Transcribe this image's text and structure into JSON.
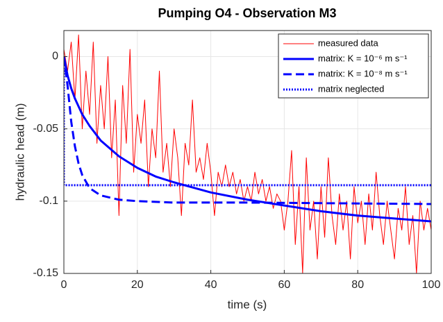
{
  "chart_data": {
    "type": "line",
    "title": "Pumping O4 - Observation M3",
    "xlabel": "time (s)",
    "ylabel": "hydraulic head (m)",
    "xlim": [
      0,
      100
    ],
    "ylim": [
      -0.15,
      0.018
    ],
    "xticks": [
      0,
      20,
      40,
      60,
      80,
      100
    ],
    "yticks": [
      0,
      -0.05,
      -0.1,
      -0.15
    ],
    "grid": true,
    "legend_location": "northeast",
    "series": [
      {
        "name": "measured data",
        "color": "#ff0000",
        "line_style": "-",
        "x": [
          0,
          1,
          2,
          3,
          4,
          5,
          6,
          7,
          8,
          9,
          10,
          11,
          12,
          13,
          14,
          15,
          16,
          17,
          18,
          19,
          20,
          21,
          22,
          23,
          24,
          25,
          26,
          27,
          28,
          29,
          30,
          31,
          32,
          33,
          34,
          35,
          36,
          37,
          38,
          39,
          40,
          41,
          42,
          43,
          44,
          45,
          46,
          47,
          48,
          49,
          50,
          51,
          52,
          53,
          54,
          55,
          56,
          57,
          58,
          59,
          60,
          61,
          62,
          63,
          64,
          65,
          66,
          67,
          68,
          69,
          70,
          71,
          72,
          73,
          74,
          75,
          76,
          77,
          78,
          79,
          80,
          81,
          82,
          83,
          84,
          85,
          86,
          87,
          88,
          89,
          90,
          91,
          92,
          93,
          94,
          95,
          96,
          97,
          98,
          99,
          100
        ],
        "values": [
          0.005,
          -0.01,
          0.01,
          -0.03,
          0.015,
          -0.05,
          -0.01,
          -0.04,
          0.01,
          -0.06,
          -0.02,
          -0.05,
          0.0,
          -0.07,
          -0.03,
          -0.11,
          -0.02,
          -0.06,
          0.005,
          -0.08,
          -0.04,
          -0.06,
          -0.03,
          -0.09,
          -0.05,
          -0.07,
          -0.01,
          -0.08,
          -0.06,
          -0.09,
          -0.05,
          -0.07,
          -0.11,
          -0.06,
          -0.075,
          -0.03,
          -0.08,
          -0.07,
          -0.085,
          -0.06,
          -0.08,
          -0.11,
          -0.08,
          -0.09,
          -0.075,
          -0.09,
          -0.08,
          -0.095,
          -0.085,
          -0.1,
          -0.09,
          -0.1,
          -0.08,
          -0.095,
          -0.085,
          -0.1,
          -0.09,
          -0.105,
          -0.095,
          -0.1,
          -0.12,
          -0.1,
          -0.065,
          -0.13,
          -0.09,
          -0.15,
          -0.07,
          -0.12,
          -0.1,
          -0.14,
          -0.09,
          -0.125,
          -0.07,
          -0.11,
          -0.13,
          -0.095,
          -0.12,
          -0.1,
          -0.14,
          -0.09,
          -0.115,
          -0.1,
          -0.13,
          -0.095,
          -0.12,
          -0.08,
          -0.11,
          -0.13,
          -0.1,
          -0.12,
          -0.14,
          -0.105,
          -0.12,
          -0.09,
          -0.13,
          -0.11,
          -0.15,
          -0.1,
          -0.12,
          -0.105,
          -0.12
        ]
      },
      {
        "name": "matrix: K = 10⁻⁶ m s⁻¹",
        "color": "#0000ff",
        "line_style": "-",
        "x": [
          0,
          1,
          2,
          3,
          5,
          7,
          10,
          15,
          20,
          25,
          30,
          40,
          50,
          60,
          70,
          80,
          90,
          100
        ],
        "values": [
          0,
          -0.013,
          -0.022,
          -0.029,
          -0.04,
          -0.048,
          -0.058,
          -0.069,
          -0.077,
          -0.083,
          -0.087,
          -0.094,
          -0.099,
          -0.103,
          -0.107,
          -0.11,
          -0.112,
          -0.114
        ]
      },
      {
        "name": "matrix: K = 10⁻⁸ m s⁻¹",
        "color": "#0000ff",
        "line_style": "--",
        "x": [
          0,
          1,
          2,
          3,
          4,
          5,
          7,
          10,
          15,
          20,
          30,
          50,
          100
        ],
        "values": [
          0,
          -0.02,
          -0.045,
          -0.062,
          -0.074,
          -0.082,
          -0.091,
          -0.096,
          -0.099,
          -0.1,
          -0.101,
          -0.101,
          -0.102
        ]
      },
      {
        "name": "matrix neglected",
        "color": "#0000ff",
        "line_style": ":",
        "x": [
          0,
          0,
          100
        ],
        "values": [
          0,
          -0.089,
          -0.089
        ]
      }
    ]
  }
}
